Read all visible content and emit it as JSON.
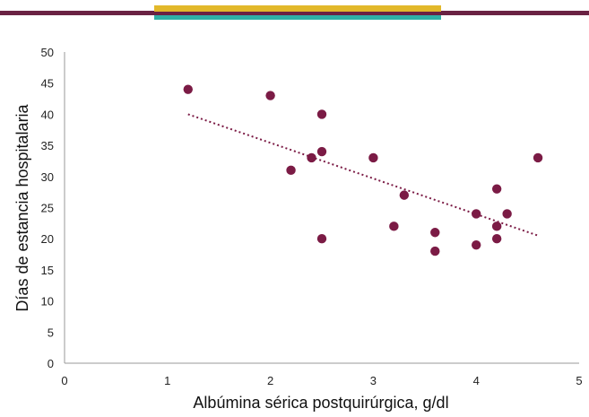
{
  "header_bar": {
    "main_color": "#6a2243",
    "accent_top_color": "#e2b82a",
    "accent_bottom_color": "#2fb0a6"
  },
  "chart_data": {
    "type": "scatter",
    "xlabel": "Albúmina sérica postquirúrgica, g/dl",
    "ylabel": "Días de estancia hospitalaria",
    "xlim": [
      0,
      5
    ],
    "ylim": [
      0,
      50
    ],
    "x_ticks": [
      "0",
      "1",
      "2",
      "3",
      "4",
      "5"
    ],
    "y_ticks": [
      "0",
      "5",
      "10",
      "15",
      "20",
      "25",
      "30",
      "35",
      "40",
      "45",
      "50"
    ],
    "grid": false,
    "legend": "none",
    "point_color": "#7b1b45",
    "series": [
      {
        "points": [
          {
            "x": 1.2,
            "y": 44
          },
          {
            "x": 2.0,
            "y": 43
          },
          {
            "x": 2.2,
            "y": 31
          },
          {
            "x": 2.4,
            "y": 33
          },
          {
            "x": 2.5,
            "y": 40
          },
          {
            "x": 2.5,
            "y": 34
          },
          {
            "x": 2.5,
            "y": 20
          },
          {
            "x": 3.0,
            "y": 33
          },
          {
            "x": 3.2,
            "y": 22
          },
          {
            "x": 3.3,
            "y": 27
          },
          {
            "x": 3.6,
            "y": 21
          },
          {
            "x": 3.6,
            "y": 18
          },
          {
            "x": 4.0,
            "y": 24
          },
          {
            "x": 4.0,
            "y": 19
          },
          {
            "x": 4.2,
            "y": 28
          },
          {
            "x": 4.2,
            "y": 22
          },
          {
            "x": 4.2,
            "y": 20
          },
          {
            "x": 4.3,
            "y": 24
          },
          {
            "x": 4.6,
            "y": 33
          }
        ]
      }
    ],
    "trendline": {
      "style": "dotted",
      "color": "#7b1b45",
      "from": {
        "x": 1.2,
        "y": 40
      },
      "to": {
        "x": 4.6,
        "y": 20.5
      }
    }
  }
}
